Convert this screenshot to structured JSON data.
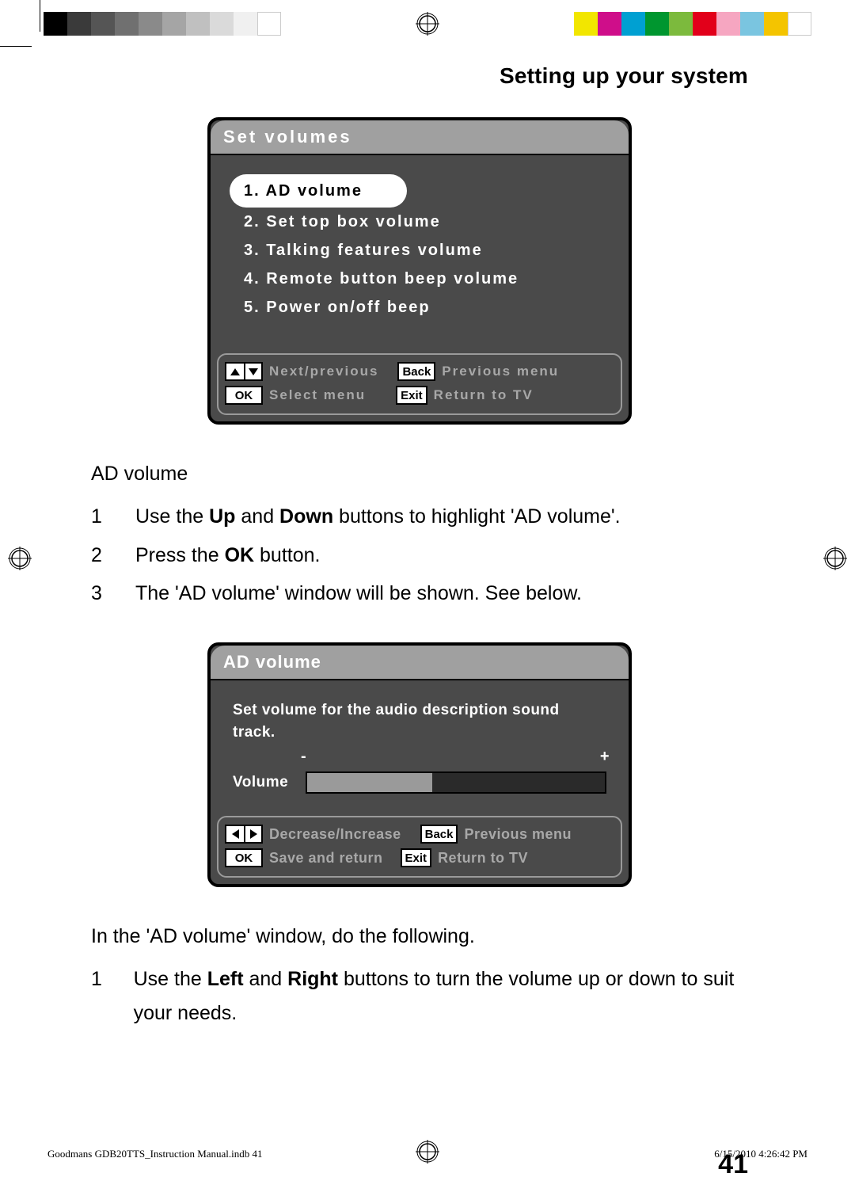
{
  "colorbars": {
    "left": [
      "#000000",
      "#3a3a3a",
      "#555555",
      "#707070",
      "#8a8a8a",
      "#a5a5a5",
      "#c0c0c0",
      "#dadada",
      "#f0f0f0",
      "#ffffff"
    ],
    "right": [
      "#f2e600",
      "#cf0e8a",
      "#00a0d2",
      "#00962f",
      "#7cba3d",
      "#e2001a",
      "#f6a6c1",
      "#7ac5e0",
      "#f4c400",
      "#ffffff"
    ]
  },
  "section_title": "Setting up your system",
  "osd1": {
    "title": "Set volumes",
    "items": [
      "1. AD volume",
      "2. Set top box volume",
      "3. Talking features volume",
      "4. Remote button beep volume",
      "5. Power on/off beep"
    ],
    "selected_index": 0,
    "footer": {
      "arrows_label": "Next/previous",
      "ok_key": "OK",
      "ok_label": "Select menu",
      "back_key": "Back",
      "back_label": "Previous menu",
      "exit_key": "Exit",
      "exit_label": "Return to TV"
    }
  },
  "subhead": "AD volume",
  "steps1": [
    {
      "n": "1",
      "pre": "Use the ",
      "b1": "Up",
      "mid": " and ",
      "b2": "Down",
      "post": " buttons to highlight 'AD volume'."
    },
    {
      "n": "2",
      "pre": "Press the ",
      "b1": "OK",
      "mid": "",
      "b2": "",
      "post": " button."
    },
    {
      "n": "3",
      "pre": "The 'AD volume' window will be shown. See below.",
      "b1": "",
      "mid": "",
      "b2": "",
      "post": ""
    }
  ],
  "osd2": {
    "title": "AD volume",
    "desc": "Set volume for the audio description sound track.",
    "minus": "-",
    "plus": "+",
    "volume_label": "Volume",
    "volume_fill_pct": 42,
    "footer": {
      "arrows_label": "Decrease/Increase",
      "ok_key": "OK",
      "ok_label": "Save and return",
      "back_key": "Back",
      "back_label": "Previous menu",
      "exit_key": "Exit",
      "exit_label": "Return to TV"
    }
  },
  "para2": "In the 'AD volume' window, do the following.",
  "steps2": [
    {
      "n": "1",
      "pre": "Use the ",
      "b1": "Left",
      "mid": " and ",
      "b2": "Right",
      "post": " buttons to turn the volume up or down to suit your needs."
    }
  ],
  "page_number": "41",
  "footer": {
    "left": "Goodmans GDB20TTS_Instruction Manual.indb   41",
    "right": "6/15/2010   4:26:42 PM"
  },
  "style": {
    "osd_bg": "#4a4a4a",
    "osd_header_bg": "#a0a0a0",
    "osd_border": "#000000",
    "footer_border": "#9a9a9a",
    "footer_text": "#a8a8a8",
    "page_bg": "#ffffff"
  }
}
